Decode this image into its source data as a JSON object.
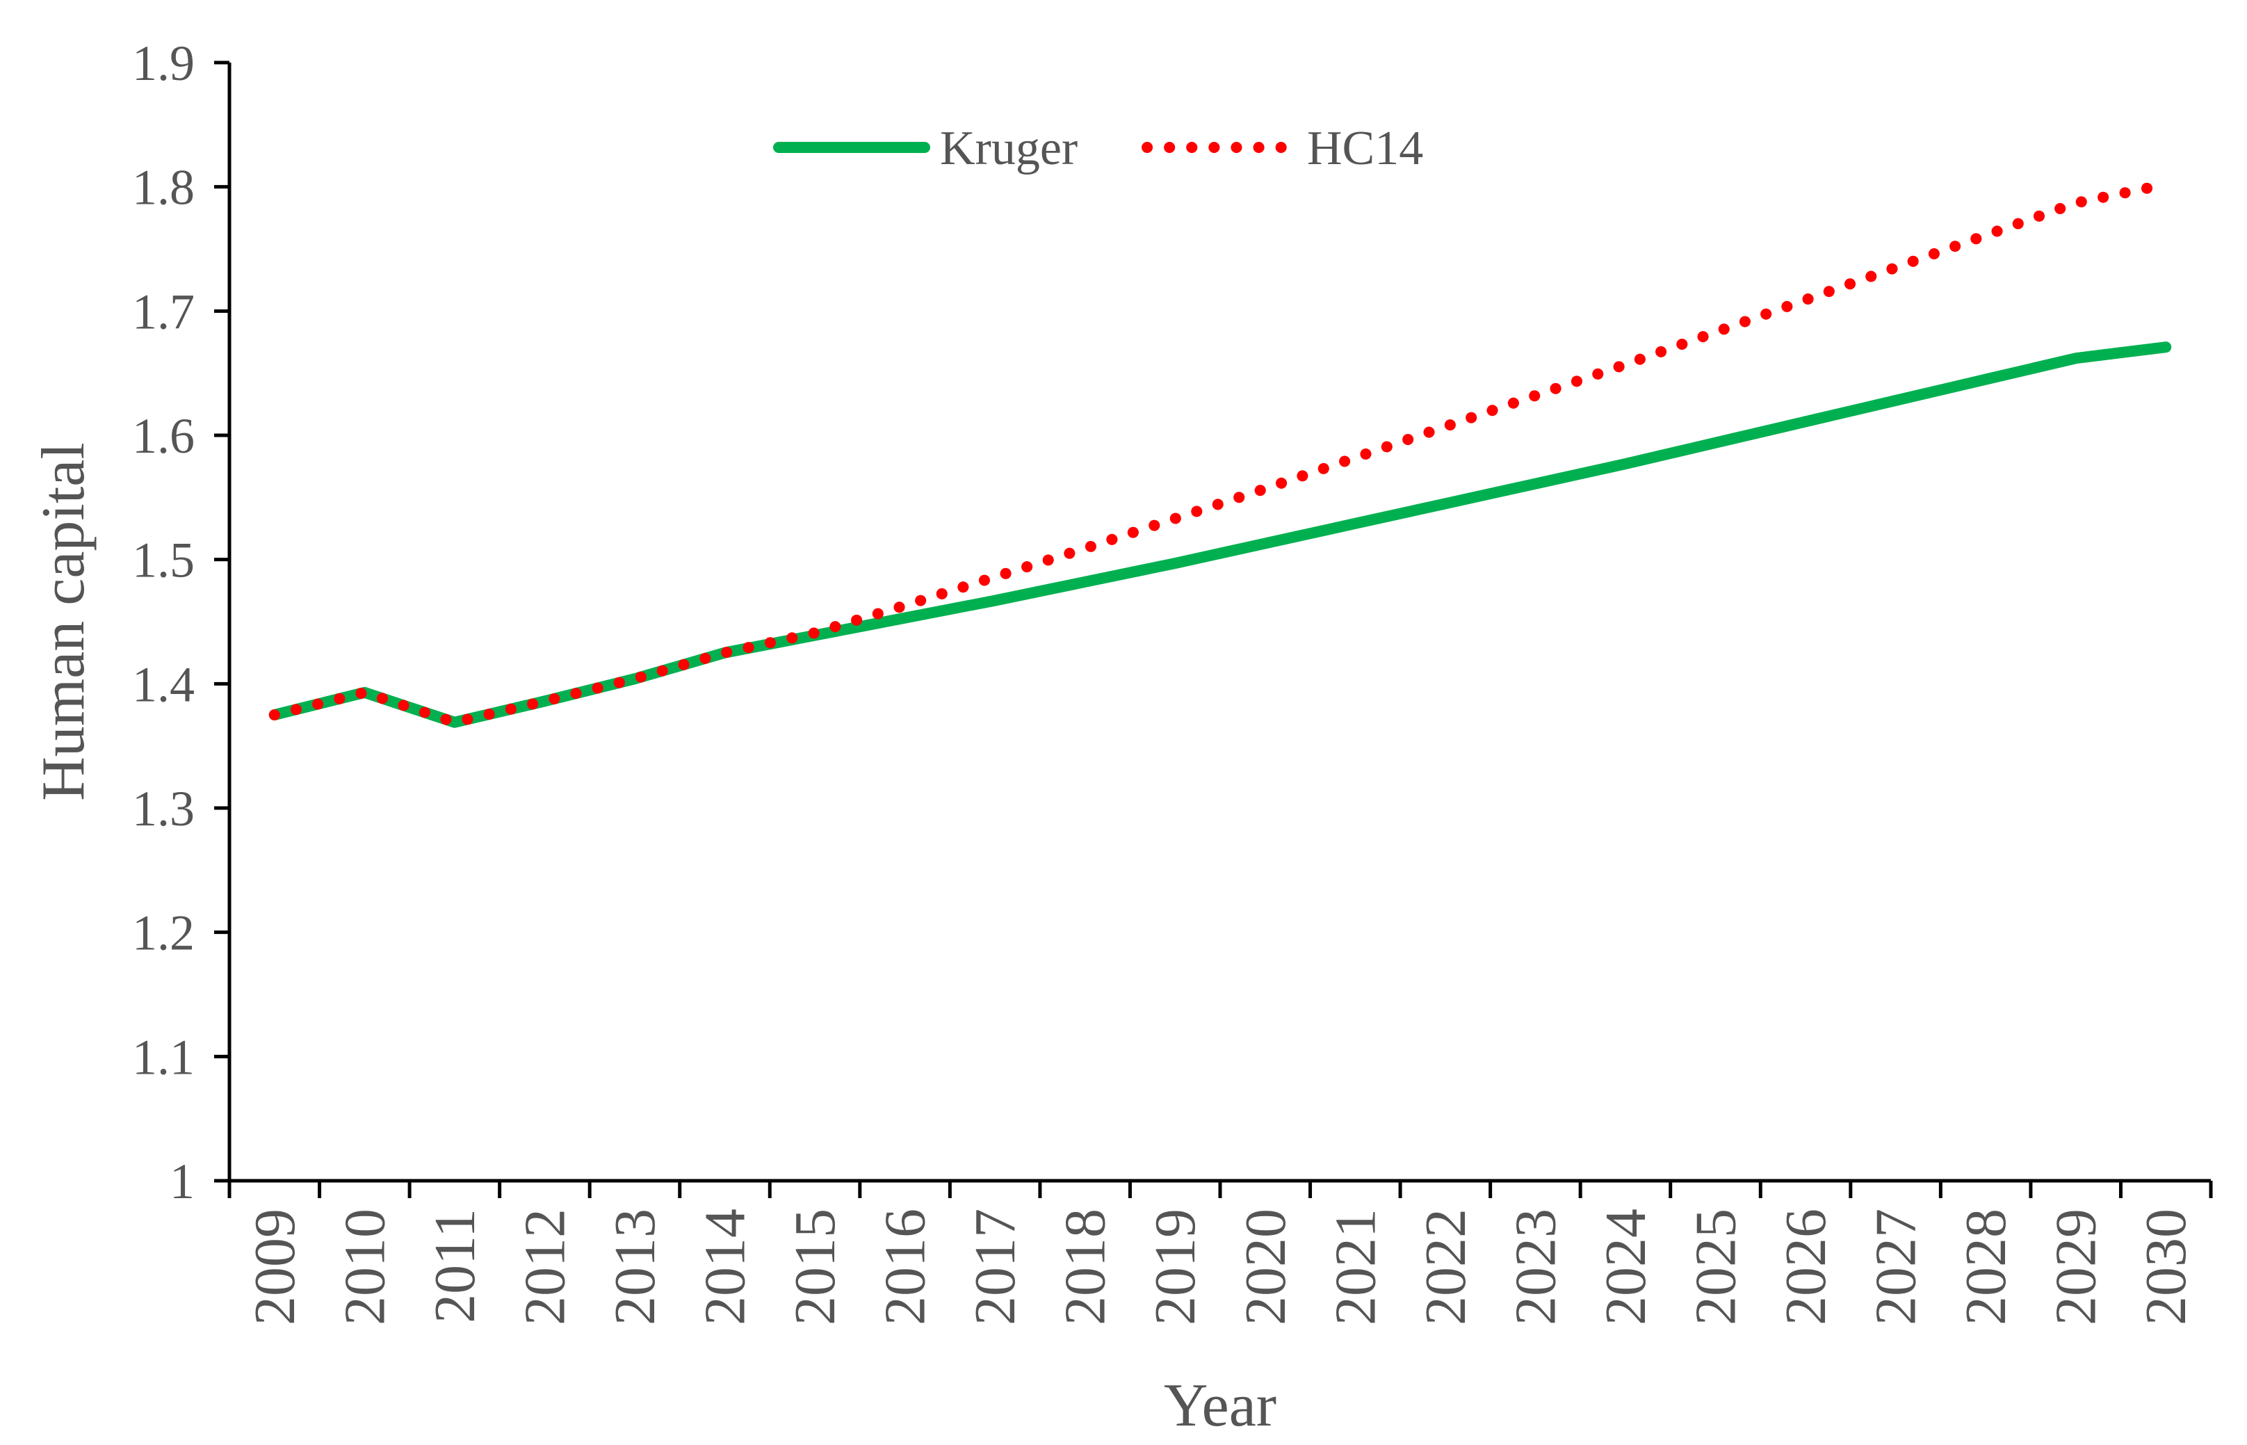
{
  "chart_data": {
    "type": "line",
    "title": "",
    "xlabel": "Year",
    "ylabel": "Human capital",
    "ylim": [
      1,
      1.9
    ],
    "yticks": [
      "1",
      "1.1",
      "1.2",
      "1.3",
      "1.4",
      "1.5",
      "1.6",
      "1.7",
      "1.8",
      "1.9"
    ],
    "categories": [
      "2009",
      "2010",
      "2011",
      "2012",
      "2013",
      "2014",
      "2015",
      "2016",
      "2017",
      "2018",
      "2019",
      "2020",
      "2021",
      "2022",
      "2023",
      "2024",
      "2025",
      "2026",
      "2027",
      "2028",
      "2029",
      "2030"
    ],
    "grid": false,
    "legend": "top-center",
    "series": [
      {
        "name": "Kruger",
        "style": "solid",
        "color": "#00b050",
        "values": [
          1.375,
          1.393,
          1.369,
          1.386,
          1.404,
          1.425,
          1.439,
          1.453,
          1.467,
          1.482,
          1.497,
          1.513,
          1.529,
          1.545,
          1.561,
          1.577,
          1.594,
          1.611,
          1.628,
          1.645,
          1.662,
          1.671
        ]
      },
      {
        "name": "HC14",
        "style": "dotted",
        "color": "#ff0000",
        "values": [
          1.375,
          1.393,
          1.369,
          1.386,
          1.404,
          1.425,
          1.441,
          1.463,
          1.486,
          1.509,
          1.533,
          1.557,
          1.582,
          1.607,
          1.632,
          1.657,
          1.683,
          1.709,
          1.735,
          1.761,
          1.787,
          1.802
        ]
      }
    ]
  }
}
